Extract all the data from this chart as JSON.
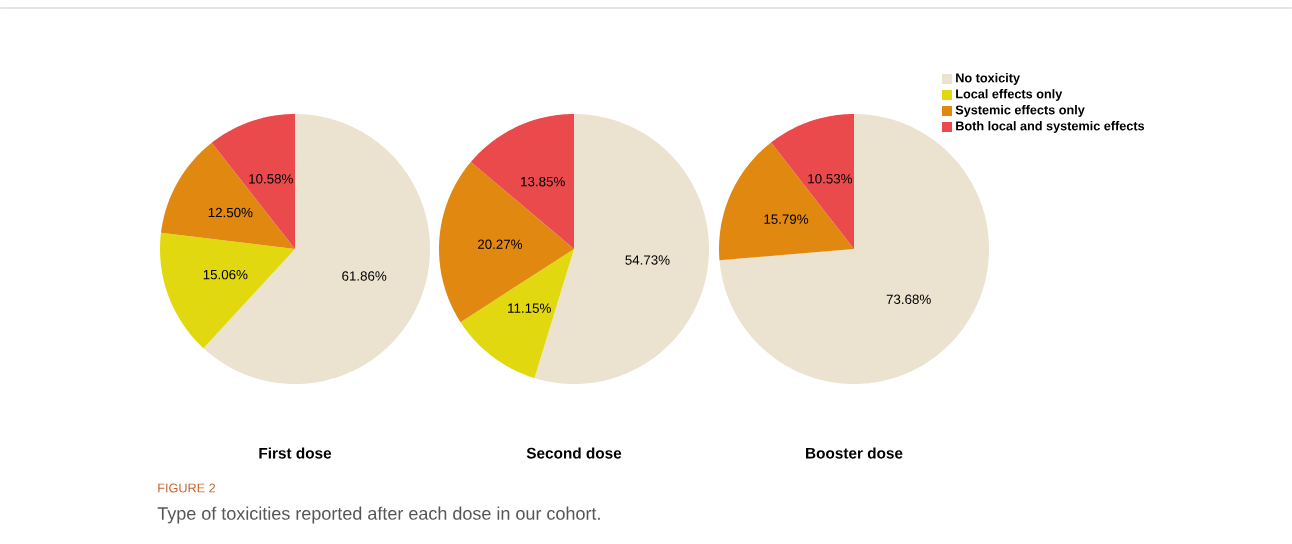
{
  "chart_data": [
    {
      "type": "pie",
      "title": "First dose",
      "categories": [
        "No toxicity",
        "Local effects only",
        "Systemic effects only",
        "Both local and systemic effects"
      ],
      "values": [
        61.86,
        15.06,
        12.5,
        10.58
      ],
      "value_labels": [
        "61.86%",
        "15.06%",
        "12.50%",
        "10.58%"
      ],
      "colors": [
        "#ebe3cf",
        "#e2d80f",
        "#e0880f",
        "#eb4a4c"
      ],
      "legend": "right",
      "annotations": [
        "FIGURE 2",
        "Type of toxicities reported after each dose in our cohort."
      ]
    },
    {
      "type": "pie",
      "title": "Second dose",
      "categories": [
        null,
        null,
        null,
        null
      ],
      "values": [
        54.73,
        11.15,
        20.27,
        13.85
      ],
      "value_labels": [
        "54.73%",
        "11.15%",
        "20.27%",
        "13.85%"
      ],
      "colors": [
        "#ebe3cf",
        "#e2d80f",
        "#e0880f",
        "#eb4a4c"
      ]
    },
    {
      "type": "pie",
      "title": "Booster dose",
      "categories": [
        null,
        null,
        null
      ],
      "values": [
        73.68,
        15.79,
        10.53
      ],
      "value_labels": [
        "73.68%",
        "15.79%",
        "10.53%"
      ],
      "colors": [
        "#ebe3cf",
        "#e0880f",
        "#eb4a4c"
      ]
    }
  ]
}
